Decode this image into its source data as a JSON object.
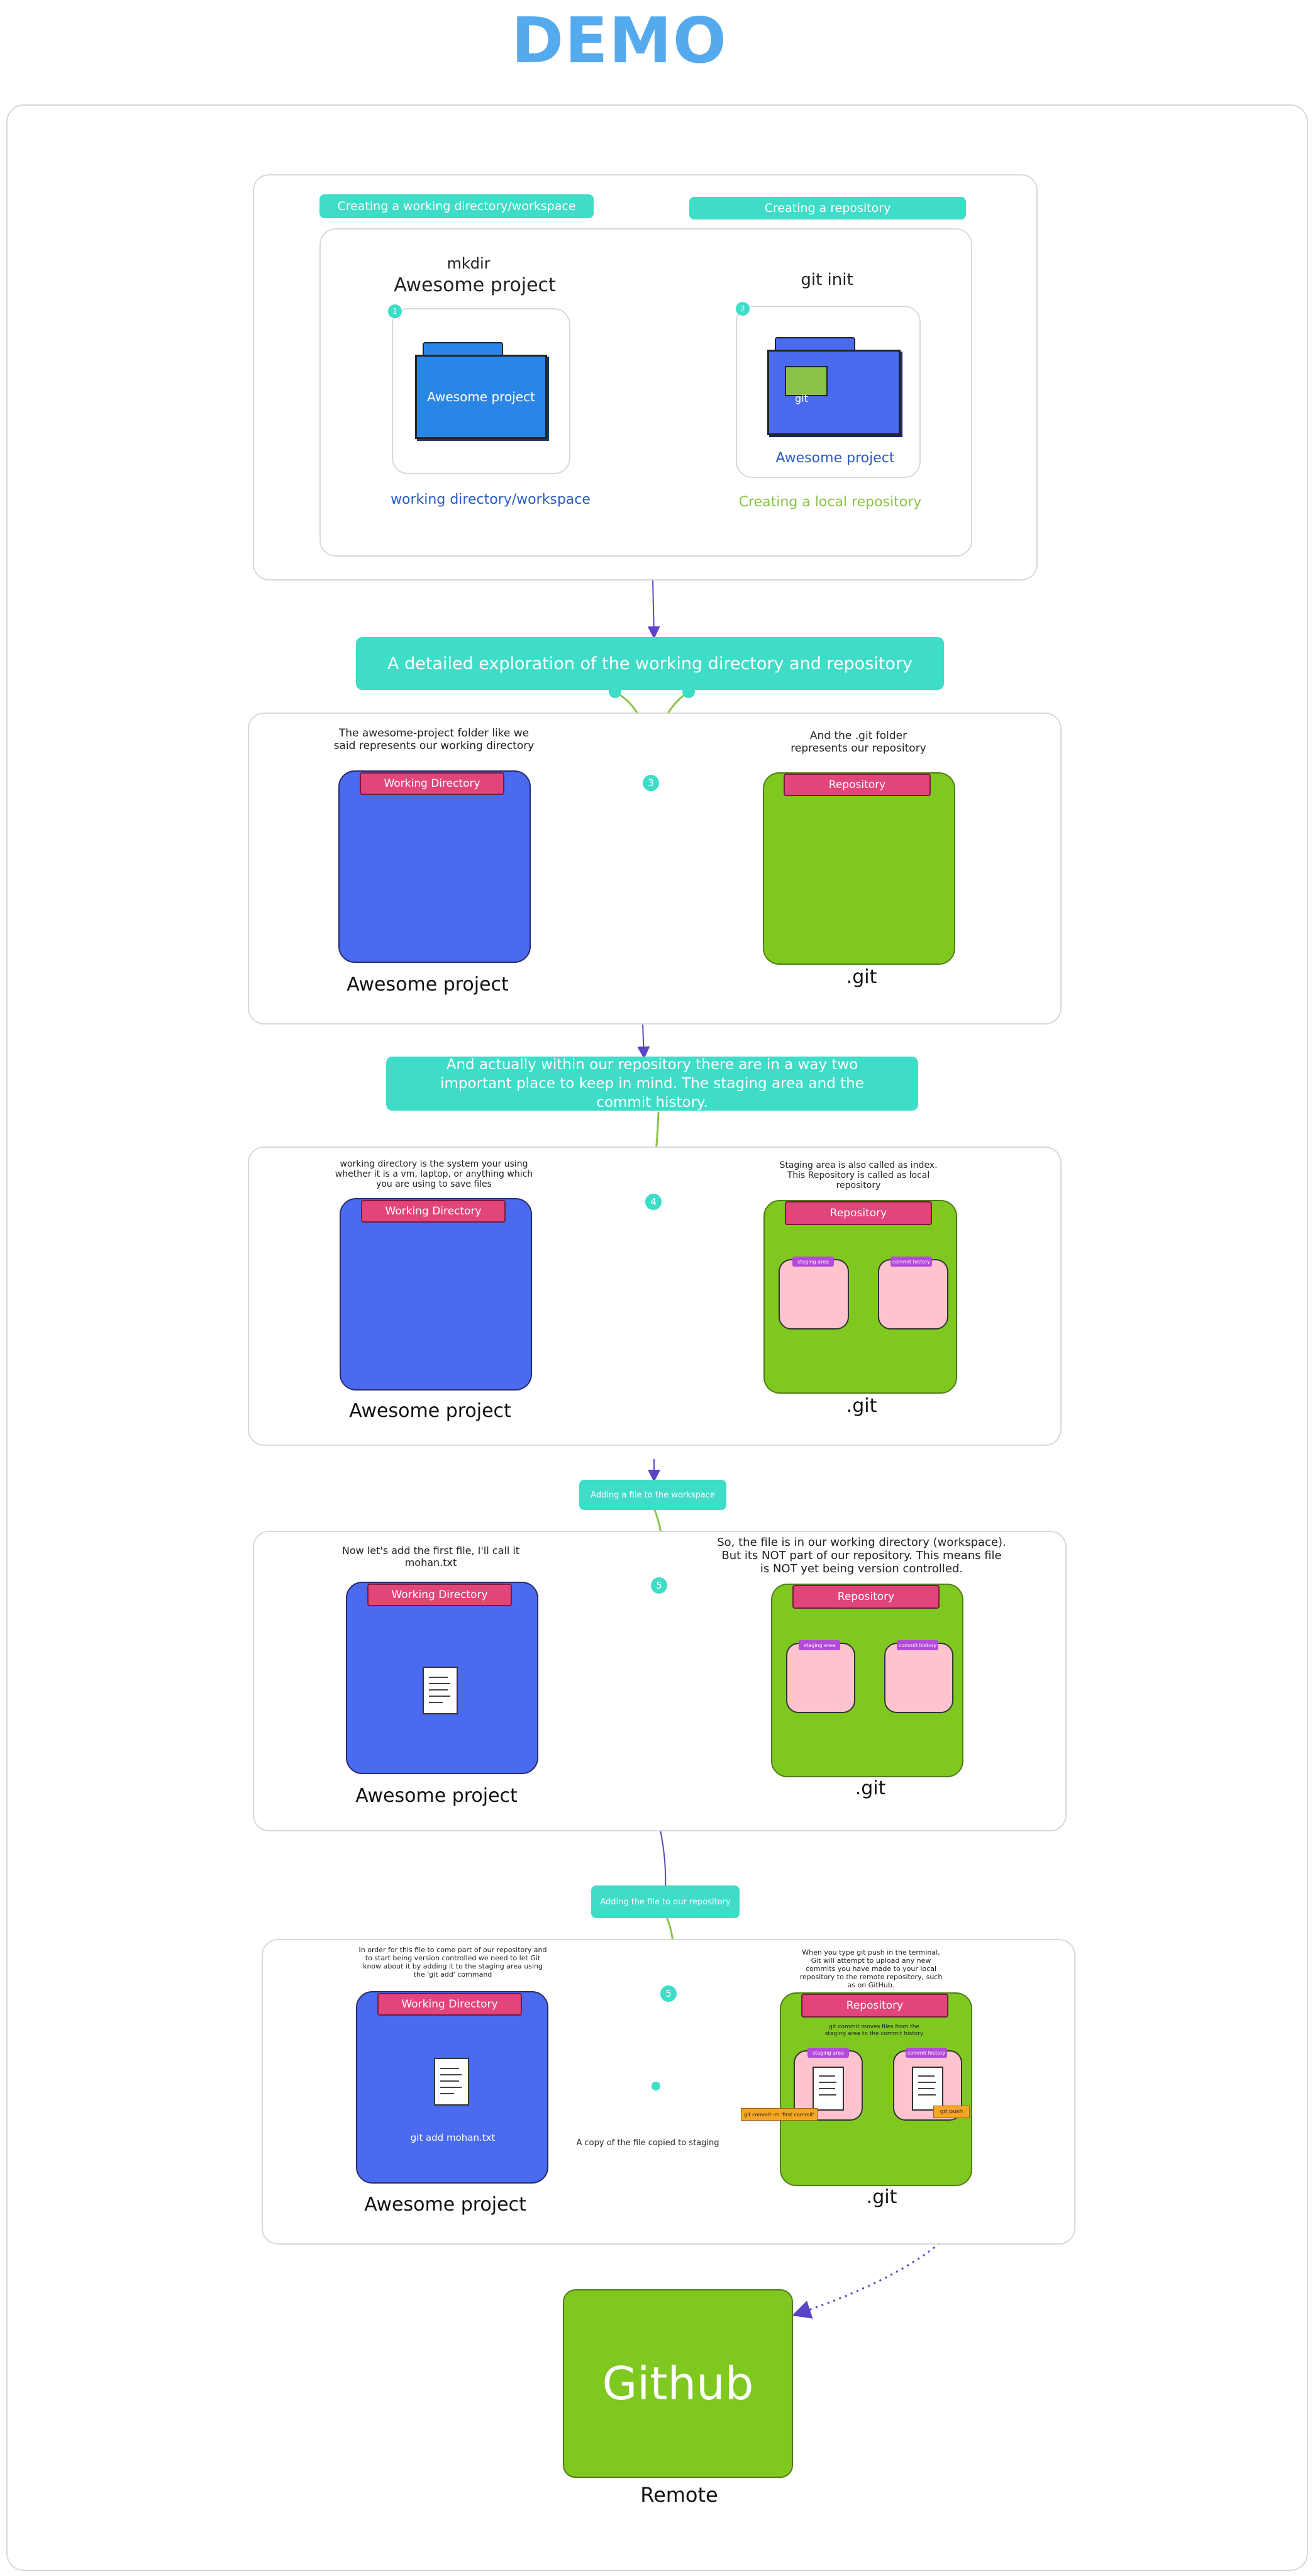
{
  "title": "DEMO",
  "section1": {
    "label_workspace": "Creating a working directory/workspace",
    "label_repo": "Creating a repository",
    "mkdir_cmd": "mkdir",
    "project_name": "Awesome project",
    "git_init_cmd": "git init",
    "folder1_label": "Awesome project",
    "git_folder_label": "git",
    "folder2_label": "Awesome project",
    "workspace_caption": "working directory/workspace",
    "local_repo_caption": "Creating a local repository",
    "step1": "1",
    "step2": "2"
  },
  "section2": {
    "banner": "A detailed exploration of the working directory and repository",
    "left_caption": "The awesome-project folder like we said represents our working directory",
    "right_caption": "And the .git folder represents our repository",
    "wd_label": "Working Directory",
    "repo_label": "Repository",
    "left_name": "Awesome project",
    "right_name": ".git",
    "step": "3"
  },
  "section3": {
    "banner": "And actually within our repository there are in a way two important place to keep in mind. The staging area and the commit history.",
    "left_caption": "working directory is the system your using whether it is a vm, laptop, or anything which you are using to save files",
    "right_caption": "Staging area is also called as index. This Repository is called as local repository",
    "wd_label": "Working Directory",
    "repo_label": "Repository",
    "staging_label": "staging area",
    "commit_label": "commit history",
    "left_name": "Awesome project",
    "right_name": ".git",
    "step": "4"
  },
  "section4": {
    "banner": "Adding a file to the workspace",
    "left_caption": "Now let's add the first file, I'll call it mohan.txt",
    "right_caption": "So, the file is in our working directory (workspace). But its NOT part of our repository. This means file is NOT yet being version controlled.",
    "wd_label": "Working Directory",
    "repo_label": "Repository",
    "staging_label": "staging area",
    "commit_label": "commit history",
    "left_name": "Awesome project",
    "right_name": ".git",
    "step": "5"
  },
  "section5": {
    "banner": "Adding the file to our repository",
    "left_caption": "In order for this file to come part of our repository and to start being version controlled we need to let Git know about it by adding it to the staging area using the 'git add' command",
    "right_caption": "When you type git push in the terminal, Git will attempt to upload any new commits you have made to your local repository to the remote repository, such as on GitHub.",
    "inner_note": "git commit moves files from the staging area to the commit history",
    "wd_label": "Working Directory",
    "repo_label": "Repository",
    "staging_label": "staging area",
    "commit_label": "commit history",
    "git_add_text": "git add mohan.txt",
    "copy_caption": "A copy of the file copied to staging",
    "commit_tag": "git commit -m 'first commit'",
    "push_tag": "git push",
    "left_name": "Awesome project",
    "right_name": ".git",
    "step": "5"
  },
  "remote": {
    "box_label": "Github",
    "name": "Remote"
  },
  "colors": {
    "teal": "#3fdcc8",
    "blue": "#4a6af0",
    "green": "#7fc820",
    "pink_label": "#e2447c",
    "pink_box": "#ffc3cd",
    "purple_label": "#b44ad8",
    "title_blue": "#55aaee",
    "arrow_purple": "#5a44c8",
    "arrow_green": "#8bc34a"
  }
}
